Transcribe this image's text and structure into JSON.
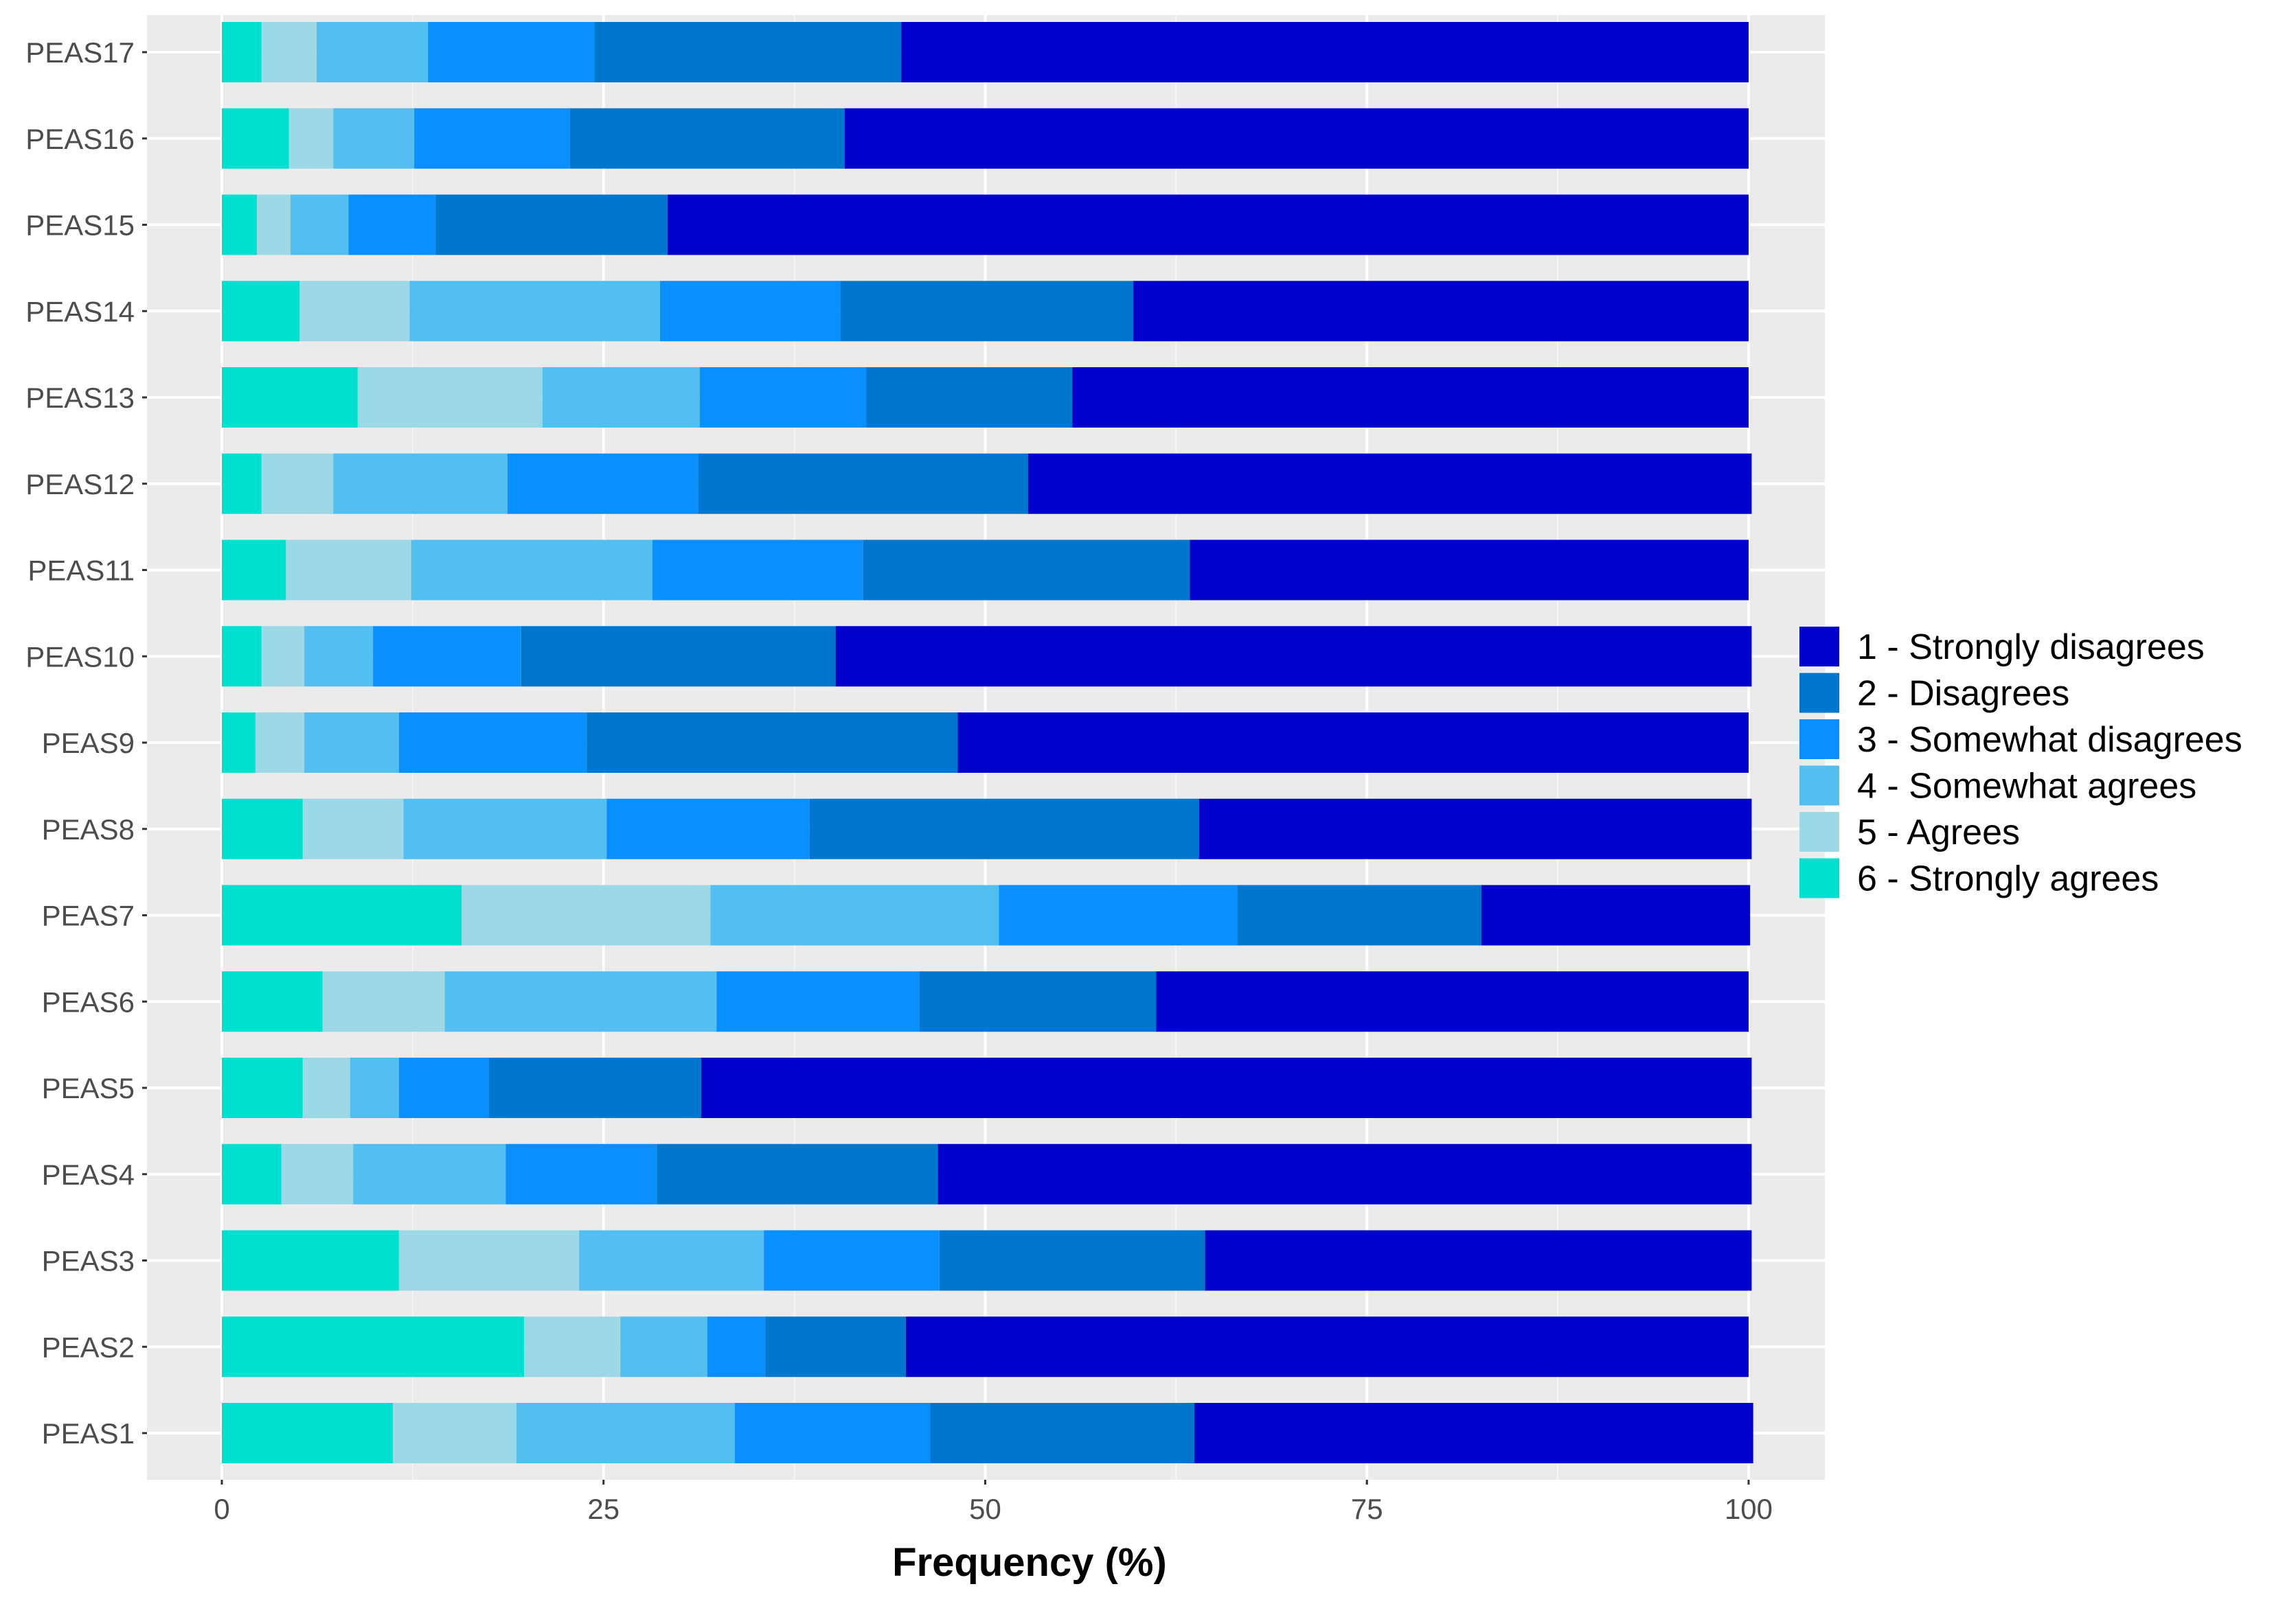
{
  "chart_data": {
    "type": "bar",
    "orientation": "horizontal",
    "stacked": true,
    "title": "",
    "xlabel": "Frequency (%)",
    "ylabel": "",
    "xlim": [
      0,
      100
    ],
    "x_ticks": [
      0,
      25,
      50,
      75,
      100
    ],
    "grid": true,
    "legend_position": "right",
    "categories": [
      "PEAS17",
      "PEAS16",
      "PEAS15",
      "PEAS14",
      "PEAS13",
      "PEAS12",
      "PEAS11",
      "PEAS10",
      "PEAS9",
      "PEAS8",
      "PEAS7",
      "PEAS6",
      "PEAS5",
      "PEAS4",
      "PEAS3",
      "PEAS2",
      "PEAS1"
    ],
    "stack_order": [
      "6 - Strongly agrees",
      "5 - Agrees",
      "4 - Somewhat agrees",
      "3 - Somewhat disagrees",
      "2 - Disagrees",
      "1 - Strongly disagrees"
    ],
    "series": [
      {
        "name": "1 - Strongly disagrees",
        "color": "#0000CD",
        "values": [
          55.5,
          59.2,
          70.8,
          40.3,
          44.3,
          47.4,
          36.6,
          60.0,
          51.8,
          36.2,
          17.6,
          38.8,
          68.8,
          53.3,
          35.8,
          55.2,
          36.6
        ]
      },
      {
        "name": "2 - Disagrees",
        "color": "#0077CC",
        "values": [
          20.1,
          18.0,
          15.2,
          19.2,
          13.5,
          21.6,
          21.4,
          20.6,
          24.3,
          25.5,
          16.0,
          15.5,
          13.9,
          18.4,
          17.4,
          9.2,
          17.3
        ]
      },
      {
        "name": "3 - Somewhat disagrees",
        "color": "#0A8FFF",
        "values": [
          10.9,
          10.2,
          5.7,
          11.8,
          10.9,
          12.5,
          13.8,
          9.7,
          12.3,
          13.3,
          15.6,
          13.3,
          5.9,
          9.9,
          11.5,
          3.8,
          12.8
        ]
      },
      {
        "name": "4 - Somewhat agrees",
        "color": "#52BFF0",
        "values": [
          7.3,
          5.3,
          3.8,
          16.4,
          10.3,
          11.4,
          15.8,
          4.5,
          6.2,
          13.3,
          18.9,
          17.8,
          3.2,
          10.0,
          12.1,
          5.7,
          14.3
        ]
      },
      {
        "name": "5 - Agrees",
        "color": "#9DD8E6",
        "values": [
          3.6,
          2.9,
          2.2,
          7.2,
          12.1,
          4.7,
          8.2,
          2.8,
          3.2,
          6.6,
          16.3,
          8.0,
          3.1,
          4.7,
          11.8,
          6.3,
          8.1
        ]
      },
      {
        "name": "6 - Strongly agrees",
        "color": "#00E0D0",
        "values": [
          2.6,
          4.4,
          2.3,
          5.1,
          8.9,
          2.6,
          4.2,
          2.6,
          2.2,
          5.3,
          15.7,
          6.6,
          5.3,
          3.9,
          11.6,
          19.8,
          11.2
        ]
      }
    ]
  }
}
